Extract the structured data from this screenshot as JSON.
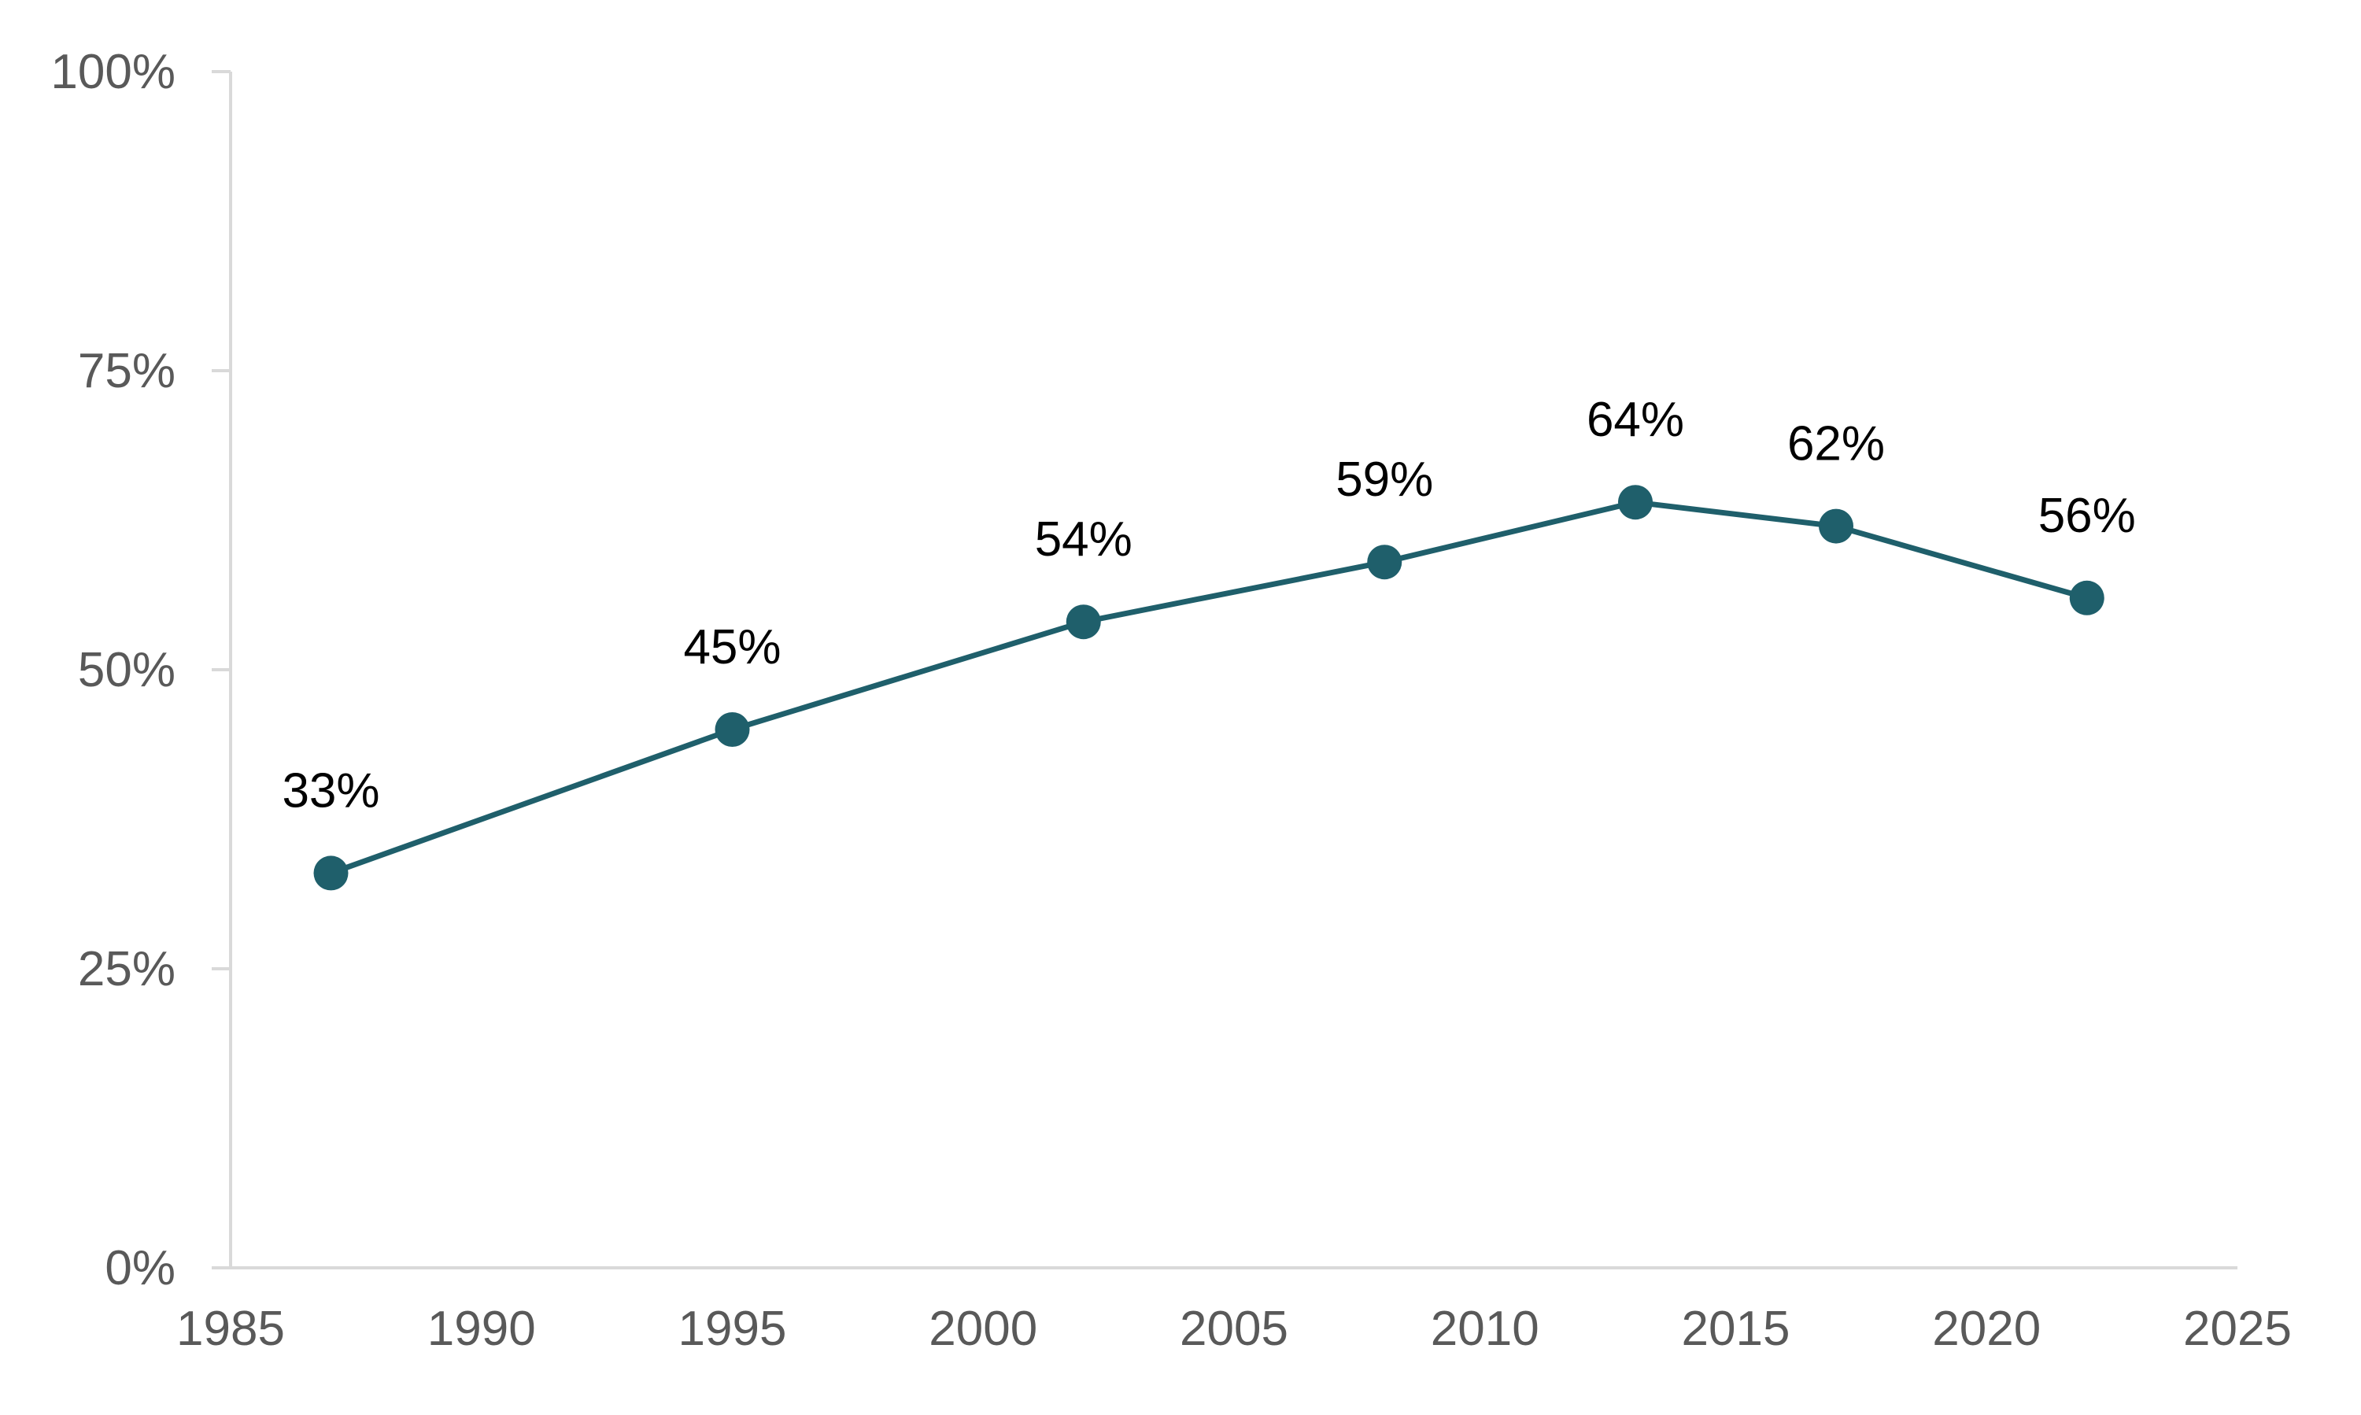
{
  "chart_data": {
    "type": "line",
    "title": "",
    "xlabel": "",
    "ylabel": "",
    "xlim": [
      1985,
      2025
    ],
    "ylim": [
      0,
      100
    ],
    "x_ticks": [
      1985,
      1990,
      1995,
      2000,
      2005,
      2010,
      2015,
      2020,
      2025
    ],
    "x_tick_labels": [
      "1985",
      "1990",
      "1995",
      "2000",
      "2005",
      "2010",
      "2015",
      "2020",
      "2025"
    ],
    "y_ticks": [
      0,
      25,
      50,
      75,
      100
    ],
    "y_tick_labels": [
      "0%",
      "25%",
      "50%",
      "75%",
      "100%"
    ],
    "grid": false,
    "legend": "none",
    "series": [
      {
        "color": "#1f5f6b",
        "x": [
          1987,
          1995,
          2002,
          2008,
          2013,
          2017,
          2022
        ],
        "values": [
          33,
          45,
          54,
          59,
          64,
          62,
          56
        ],
        "data_labels": [
          "33%",
          "45%",
          "54%",
          "59%",
          "64%",
          "62%",
          "56%"
        ]
      }
    ],
    "axis_color": "#d9d9d9"
  }
}
